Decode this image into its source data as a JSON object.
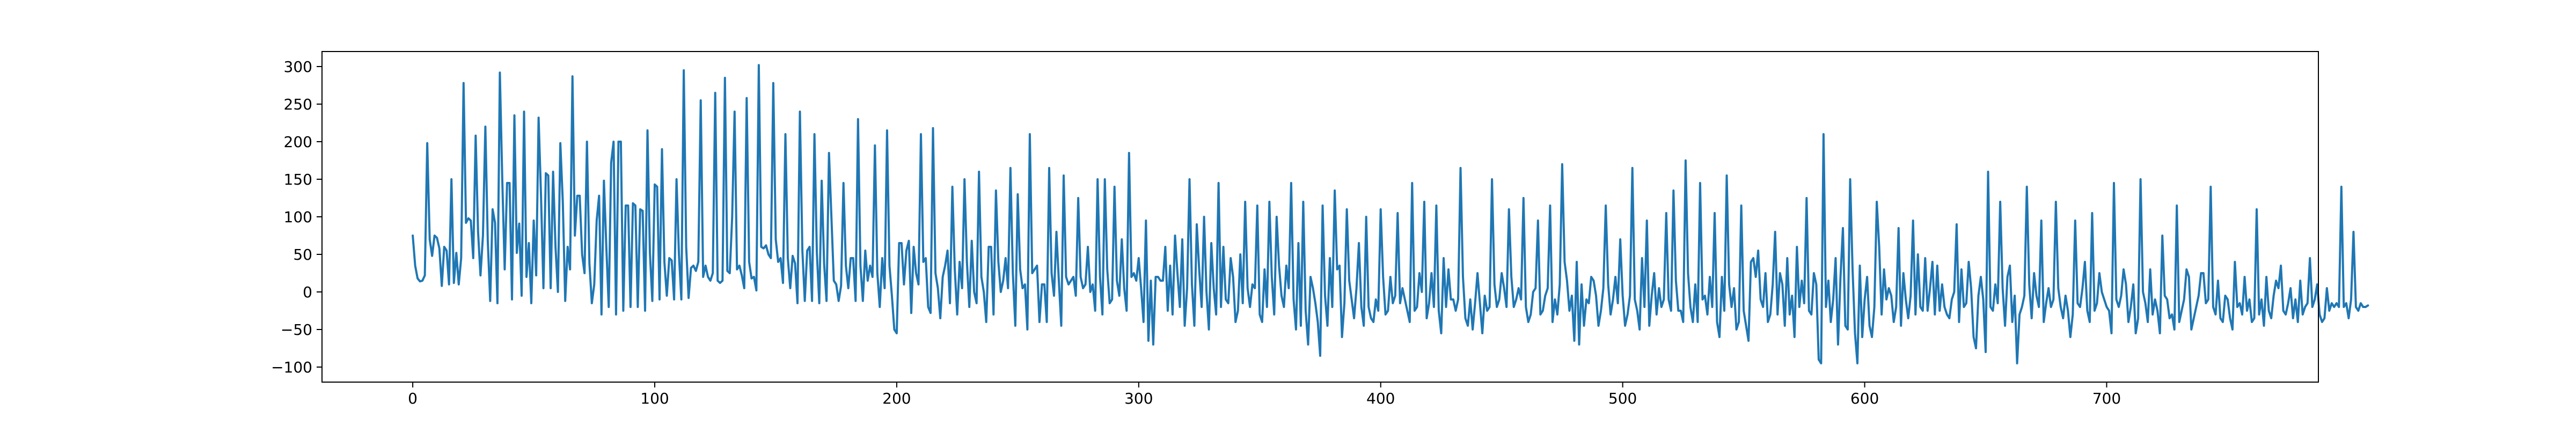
{
  "chart_data": {
    "type": "line",
    "title": "",
    "xlabel": "",
    "ylabel": "",
    "xlim": [
      -37.5,
      787.5
    ],
    "ylim": [
      -120,
      320
    ],
    "x_ticks": [
      0,
      100,
      200,
      300,
      400,
      500,
      600,
      700
    ],
    "x_tick_labels": [
      "0",
      "100",
      "200",
      "300",
      "400",
      "500",
      "600",
      "700"
    ],
    "y_ticks": [
      -100,
      -50,
      0,
      50,
      100,
      150,
      200,
      250,
      300
    ],
    "y_tick_labels": [
      "−100",
      "−50",
      "0",
      "50",
      "100",
      "150",
      "200",
      "250",
      "300"
    ],
    "grid": false,
    "legend": "none",
    "line_color": "#1f77b4",
    "series": [
      {
        "x_start": 0,
        "x_step": 1,
        "values": [
          75,
          35,
          18,
          14,
          15,
          22,
          198,
          70,
          48,
          75,
          72,
          58,
          8,
          60,
          55,
          10,
          150,
          12,
          52,
          10,
          45,
          278,
          92,
          98,
          95,
          45,
          208,
          80,
          22,
          75,
          220,
          68,
          -12,
          110,
          92,
          -15,
          292,
          150,
          30,
          145,
          145,
          -10,
          235,
          52,
          91,
          -5,
          240,
          20,
          65,
          -15,
          95,
          22,
          232,
          128,
          5,
          158,
          155,
          5,
          160,
          60,
          0,
          198,
          120,
          -12,
          60,
          30,
          287,
          75,
          128,
          128,
          50,
          25,
          200,
          38,
          -15,
          10,
          95,
          128,
          -30,
          148,
          60,
          -20,
          172,
          200,
          -30,
          200,
          200,
          -25,
          115,
          115,
          -20,
          118,
          115,
          -20,
          110,
          108,
          -25,
          215,
          52,
          -12,
          143,
          140,
          -10,
          190,
          40,
          -5,
          45,
          42,
          -10,
          150,
          50,
          -10,
          295,
          60,
          -8,
          32,
          35,
          28,
          40,
          255,
          20,
          35,
          20,
          15,
          25,
          265,
          15,
          12,
          15,
          285,
          28,
          25,
          100,
          240,
          30,
          35,
          22,
          5,
          258,
          40,
          18,
          20,
          2,
          302,
          60,
          58,
          62,
          50,
          45,
          278,
          70,
          40,
          45,
          12,
          210,
          45,
          5,
          48,
          38,
          -15,
          240,
          55,
          -12,
          55,
          60,
          -12,
          210,
          52,
          -15,
          148,
          38,
          -12,
          185,
          100,
          15,
          10,
          -12,
          8,
          145,
          35,
          5,
          45,
          45,
          -12,
          230,
          35,
          -12,
          55,
          15,
          35,
          20,
          195,
          25,
          -20,
          45,
          5,
          215,
          35,
          -5,
          -50,
          -55,
          65,
          65,
          10,
          55,
          68,
          -28,
          60,
          25,
          10,
          210,
          40,
          45,
          -20,
          -28,
          218,
          25,
          5,
          -35,
          20,
          35,
          55,
          -15,
          140,
          30,
          -30,
          40,
          5,
          150,
          40,
          -20,
          68,
          0,
          -15,
          160,
          20,
          0,
          -40,
          60,
          60,
          -30,
          135,
          40,
          0,
          15,
          45,
          5,
          165,
          25,
          -45,
          130,
          30,
          5,
          10,
          -50,
          210,
          25,
          30,
          35,
          -40,
          10,
          10,
          -40,
          165,
          25,
          -5,
          80,
          15,
          -45,
          155,
          20,
          10,
          15,
          20,
          -5,
          125,
          20,
          5,
          10,
          60,
          0,
          10,
          -25,
          150,
          20,
          -30,
          150,
          30,
          -15,
          -10,
          140,
          15,
          -5,
          70,
          5,
          -25,
          185,
          20,
          25,
          15,
          45,
          5,
          -40,
          95,
          -65,
          15,
          -70,
          20,
          20,
          15,
          15,
          60,
          -25,
          35,
          -30,
          75,
          25,
          -20,
          70,
          -45,
          5,
          150,
          10,
          -45,
          90,
          30,
          -20,
          100,
          0,
          -50,
          65,
          5,
          -30,
          145,
          -20,
          60,
          -10,
          -15,
          45,
          20,
          -40,
          -25,
          50,
          -15,
          120,
          5,
          -20,
          10,
          5,
          115,
          -30,
          -40,
          30,
          -20,
          120,
          20,
          -30,
          100,
          35,
          -5,
          -20,
          35,
          5,
          145,
          -10,
          -50,
          65,
          -45,
          120,
          -25,
          -70,
          20,
          5,
          -15,
          -40,
          -85,
          115,
          -5,
          -45,
          45,
          -20,
          135,
          30,
          35,
          -60,
          -15,
          110,
          15,
          -10,
          -35,
          5,
          65,
          -20,
          -45,
          100,
          -20,
          -35,
          -40,
          -10,
          -25,
          110,
          20,
          -30,
          -25,
          20,
          -15,
          -5,
          105,
          -15,
          5,
          -10,
          -25,
          -40,
          145,
          -25,
          -20,
          25,
          0,
          120,
          -35,
          -15,
          25,
          -20,
          115,
          -25,
          -55,
          45,
          -20,
          30,
          -10,
          -10,
          -25,
          -10,
          165,
          20,
          -35,
          -45,
          -10,
          -50,
          -15,
          25,
          -15,
          -55,
          -5,
          -25,
          -20,
          150,
          10,
          -20,
          -10,
          25,
          5,
          -20,
          110,
          20,
          -20,
          -10,
          5,
          -10,
          125,
          -20,
          -40,
          -30,
          0,
          5,
          95,
          -30,
          -25,
          -5,
          5,
          115,
          -40,
          -10,
          -30,
          10,
          170,
          40,
          15,
          -25,
          -5,
          -65,
          40,
          -70,
          10,
          -45,
          -10,
          -15,
          20,
          15,
          -5,
          -45,
          -25,
          5,
          115,
          10,
          -30,
          -10,
          20,
          -15,
          70,
          -5,
          -45,
          -30,
          -5,
          165,
          -10,
          -25,
          -50,
          45,
          -20,
          95,
          -45,
          -5,
          25,
          -30,
          5,
          -20,
          -10,
          105,
          -10,
          -25,
          135,
          15,
          -25,
          -25,
          -40,
          175,
          25,
          -20,
          -40,
          10,
          -40,
          145,
          -10,
          -5,
          -30,
          20,
          -20,
          105,
          -40,
          -60,
          20,
          -25,
          155,
          10,
          -20,
          5,
          -50,
          -40,
          115,
          -25,
          -45,
          -65,
          40,
          45,
          20,
          55,
          -10,
          -20,
          25,
          -40,
          -30,
          10,
          80,
          -30,
          25,
          10,
          -45,
          45,
          -30,
          -5,
          -60,
          60,
          -20,
          15,
          -15,
          125,
          -25,
          -30,
          25,
          10,
          -90,
          -95,
          210,
          -20,
          15,
          -40,
          -10,
          45,
          -70,
          20,
          85,
          -45,
          -50,
          150,
          30,
          -55,
          -95,
          35,
          -60,
          -10,
          20,
          -45,
          -60,
          -20,
          120,
          60,
          -30,
          30,
          -10,
          5,
          -5,
          -40,
          -20,
          85,
          -45,
          25,
          -10,
          -35,
          -5,
          95,
          -30,
          50,
          -20,
          -25,
          45,
          -25,
          5,
          40,
          -30,
          35,
          -25,
          10,
          -20,
          -30,
          -35,
          -10,
          0,
          90,
          -40,
          30,
          -20,
          -15,
          40,
          5,
          -60,
          -75,
          -5,
          20,
          -10,
          -80,
          160,
          -20,
          -25,
          10,
          -15,
          120,
          5,
          -45,
          20,
          35,
          -40,
          -5,
          -95,
          -30,
          -20,
          -5,
          140,
          10,
          -35,
          25,
          -5,
          -20,
          95,
          -40,
          -15,
          5,
          -20,
          -10,
          120,
          5,
          -20,
          -35,
          -5,
          -25,
          -60,
          -30,
          95,
          -15,
          -20,
          5,
          40,
          -25,
          -40,
          105,
          -25,
          -15,
          25,
          0,
          -10,
          -20,
          -25,
          -55,
          145,
          -10,
          -20,
          -5,
          30,
          10,
          -40,
          -20,
          10,
          -55,
          -35,
          150,
          0,
          -15,
          -40,
          30,
          -30,
          -10,
          -25,
          -55,
          75,
          -5,
          -10,
          -35,
          -30,
          -50,
          115,
          -40,
          -25,
          -10,
          30,
          20,
          -50,
          -35,
          -20,
          -5,
          25,
          25,
          -15,
          -10,
          140,
          -20,
          -30,
          15,
          -35,
          -40,
          -5,
          -10,
          -35,
          -50,
          40,
          -20,
          -15,
          -30,
          20,
          -25,
          -10,
          -40,
          -35,
          110,
          -30,
          -10,
          -45,
          20,
          -25,
          -35,
          -5,
          15,
          5,
          35,
          -25,
          -30,
          -15,
          5,
          -35,
          -10,
          -40,
          15,
          -30,
          -20,
          -15,
          45,
          -20,
          -10,
          10,
          -30,
          -40,
          -35,
          5,
          -25,
          -15,
          -20,
          -15,
          -20,
          140,
          -20,
          -15,
          -35,
          -10,
          80,
          -20,
          -25,
          -15,
          -20,
          -20,
          -18
        ]
      }
    ]
  }
}
